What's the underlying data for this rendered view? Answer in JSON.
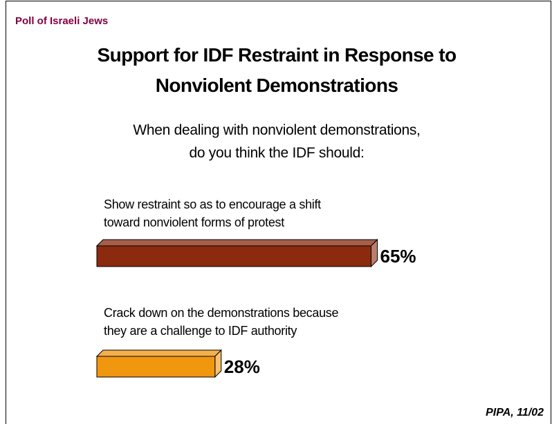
{
  "header": "Poll of Israeli Jews",
  "chart_data": {
    "type": "bar",
    "orientation": "horizontal",
    "title": "Support for IDF Restraint in Response to\nNonviolent Demonstrations",
    "subtitle": "When dealing with nonviolent demonstrations,\ndo you think the IDF should:",
    "categories": [
      "Show restraint so as to encourage a shift\ntoward nonviolent forms of protest",
      "Crack down on the demonstrations because\nthey are a challenge to IDF authority"
    ],
    "values": [
      65,
      28
    ],
    "value_labels": [
      "65%",
      "28%"
    ],
    "colors": [
      "#8b2a0e",
      "#f0960f"
    ]
  },
  "source": "PIPA, 11/02"
}
